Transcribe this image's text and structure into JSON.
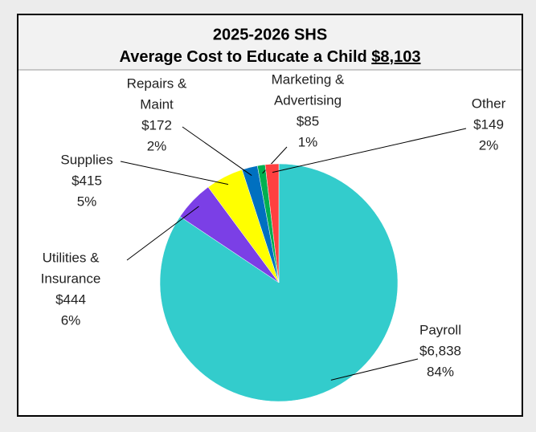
{
  "chart_data": {
    "type": "pie",
    "title": "2025-2026 SHS",
    "subtitle": "Average Cost to Educate a Child",
    "total_label": "$8,103",
    "categories": [
      [
        "Payroll"
      ],
      [
        "Utilities &",
        "Insurance"
      ],
      [
        "Supplies"
      ],
      [
        "Repairs &",
        "Maint"
      ],
      [
        "Marketing &",
        "Advertising"
      ],
      [
        "Other"
      ]
    ],
    "values": [
      6838,
      444,
      415,
      172,
      85,
      149
    ],
    "value_labels": [
      "$6,838",
      "$444",
      "$415",
      "$172",
      "$85",
      "$149"
    ],
    "percent_labels": [
      "84%",
      "6%",
      "5%",
      "2%",
      "1%",
      "2%"
    ],
    "colors": [
      "#33CCCC",
      "#7B3FE6",
      "#FFFF00",
      "#0070C0",
      "#00B050",
      "#FF4040"
    ]
  }
}
